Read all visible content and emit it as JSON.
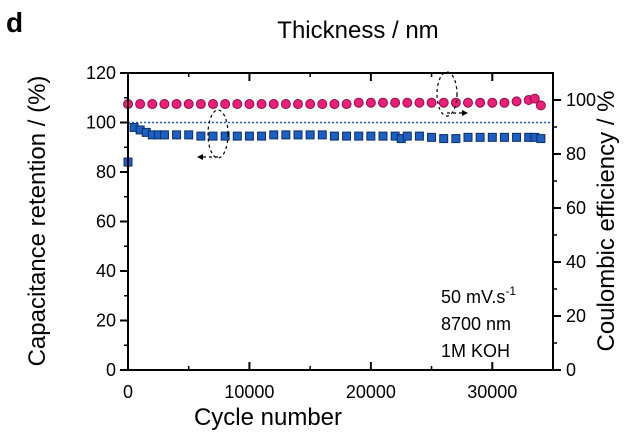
{
  "panel_label": "d",
  "chart_data": {
    "type": "scatter",
    "title": "Thickness / nm",
    "xlabel": "Cycle number",
    "ylabel_left": "Capacitance retention / (%)",
    "ylabel_right": "Coulombic efficiency / %",
    "xlim": [
      0,
      35000
    ],
    "ylim_left": [
      0,
      120
    ],
    "ylim_right": [
      0,
      110
    ],
    "x_ticks": [
      "0",
      "10000",
      "20000",
      "30000"
    ],
    "y_left_ticks": [
      "0",
      "20",
      "40",
      "60",
      "80",
      "100",
      "120"
    ],
    "y_right_ticks": [
      "0",
      "20",
      "40",
      "60",
      "80",
      "100"
    ],
    "reference_line_left": 100,
    "colors": {
      "capacitance": "#1f5fc0",
      "coulombic": "#e8207a",
      "reference": "#1f5fc0"
    },
    "annotation": {
      "line1": "50 mV.s",
      "line1_sup": "-1",
      "line2": "8700 nm",
      "line3": "1M KOH"
    },
    "series": [
      {
        "axis": "left",
        "marker": "square",
        "x": [
          0,
          500,
          1000,
          1500,
          2000,
          2500,
          3000,
          4000,
          5000,
          6000,
          7000,
          8000,
          9000,
          10000,
          11000,
          12000,
          13000,
          14000,
          15000,
          16000,
          17000,
          18000,
          19000,
          20000,
          21000,
          22000,
          22500,
          23000,
          24000,
          25000,
          26000,
          27000,
          28000,
          29000,
          30000,
          31000,
          32000,
          33000,
          33500,
          34000
        ],
        "values": [
          84,
          98,
          97,
          96,
          95,
          95,
          95,
          95,
          95,
          94.5,
          94.5,
          94.5,
          94.5,
          94.5,
          94.5,
          95,
          95,
          95,
          95,
          95,
          94.5,
          94.5,
          94.5,
          94.5,
          94.5,
          94.5,
          93.5,
          94.5,
          94.5,
          94,
          93.5,
          93.5,
          94,
          94,
          94,
          94,
          94,
          94,
          94,
          93.5
        ]
      },
      {
        "axis": "right",
        "marker": "circle",
        "x": [
          0,
          1000,
          2000,
          3000,
          4000,
          5000,
          6000,
          7000,
          8000,
          9000,
          10000,
          11000,
          12000,
          13000,
          14000,
          15000,
          16000,
          17000,
          18000,
          19000,
          20000,
          21000,
          22000,
          23000,
          24000,
          25000,
          26000,
          27000,
          28000,
          29000,
          30000,
          31000,
          32000,
          33000,
          33500,
          34000
        ],
        "values": [
          98.5,
          98.5,
          98.5,
          98.5,
          98.5,
          98.5,
          98.5,
          98.5,
          98.5,
          98.5,
          98.5,
          98.5,
          98.5,
          98.5,
          98.5,
          98.5,
          98.5,
          98.5,
          98.5,
          99,
          99,
          99,
          99,
          99,
          99,
          99,
          99,
          99,
          99,
          99,
          99,
          99,
          99.5,
          100,
          100.5,
          98
        ]
      }
    ]
  }
}
